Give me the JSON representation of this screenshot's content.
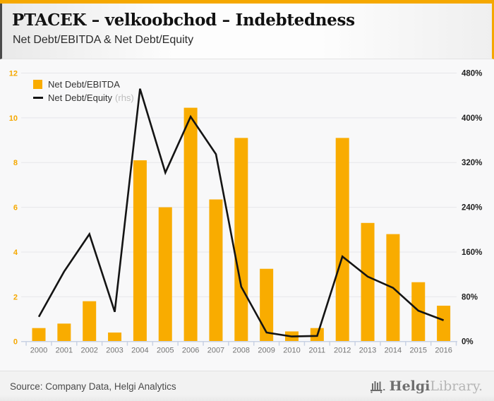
{
  "header": {
    "title": "PTACEK – velkoobchod – Indebtedness",
    "subtitle": "Net Debt/EBITDA & Net Debt/Equity"
  },
  "legend": [
    {
      "label": "Net Debt/EBITDA",
      "type": "bar",
      "color": "#F9AC00"
    },
    {
      "label": "Net Debt/Equity",
      "suffix": "(rhs)",
      "type": "line",
      "color": "#141414"
    }
  ],
  "chart_data": {
    "type": "bar+line",
    "categories": [
      "2000",
      "2001",
      "2002",
      "2003",
      "2004",
      "2005",
      "2006",
      "2007",
      "2008",
      "2009",
      "2010",
      "2011",
      "2012",
      "2013",
      "2014",
      "2015",
      "2016"
    ],
    "series": [
      {
        "name": "Net Debt/EBITDA",
        "type": "bar",
        "axis": "left",
        "color": "#F9AC00",
        "values": [
          0.6,
          0.8,
          1.8,
          0.4,
          8.1,
          6.0,
          10.45,
          6.35,
          9.1,
          3.25,
          0.45,
          0.6,
          9.1,
          5.3,
          4.8,
          2.65,
          1.6
        ]
      },
      {
        "name": "Net Debt/Equity (rhs)",
        "type": "line",
        "axis": "right",
        "color": "#141414",
        "values": [
          44,
          125,
          192,
          53,
          452,
          302,
          402,
          335,
          98,
          16,
          9,
          10,
          152,
          116,
          96,
          55,
          38
        ]
      }
    ],
    "left_axis": {
      "min": 0,
      "max": 12,
      "tick_labels": [
        "0",
        "2",
        "4",
        "6",
        "8",
        "10",
        "12"
      ],
      "color": "#F5A800"
    },
    "right_axis": {
      "min": 0,
      "max": 480,
      "tick_labels": [
        "0%",
        "80%",
        "160%",
        "240%",
        "320%",
        "400%",
        "480%"
      ],
      "color": "#1f1f1f"
    },
    "grid": true,
    "legend_position": "top-left"
  },
  "footer": {
    "source": "Source: Company Data, Helgi Analytics",
    "logo": {
      "icon": "building-icon",
      "text_primary": "Helgi",
      "text_secondary": "Library."
    }
  },
  "colors": {
    "accent_orange": "#F5A800",
    "bar_orange": "#F9AC00",
    "line_black": "#141414",
    "gridline": "#e6e6ea",
    "axis_line": "#c9d2e4",
    "year_label": "#757575"
  }
}
